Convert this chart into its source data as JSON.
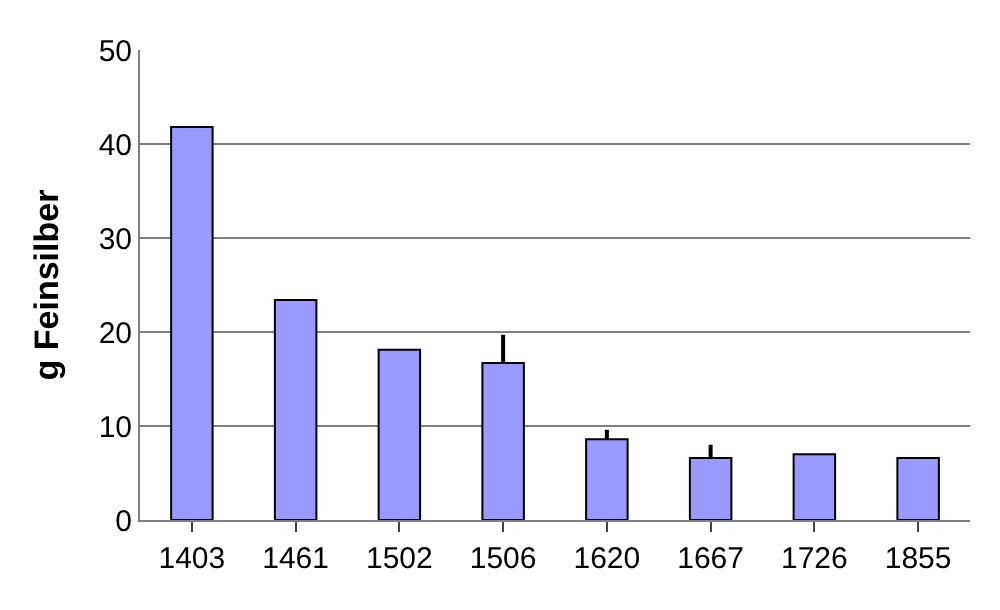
{
  "chart_data": {
    "type": "bar",
    "ylabel": "g Feinsilber",
    "categories": [
      "1403",
      "1461",
      "1502",
      "1506",
      "1620",
      "1667",
      "1726",
      "1855"
    ],
    "values": [
      41.8,
      23.4,
      18.1,
      16.7,
      8.6,
      6.6,
      7.0,
      6.6
    ],
    "errors": [
      null,
      null,
      null,
      [
        16.7,
        19.7
      ],
      [
        8.6,
        9.6
      ],
      [
        6.6,
        8.0
      ],
      null,
      null
    ],
    "color": "#9999ff",
    "ylim": [
      0,
      50
    ],
    "yticks": [
      0,
      10,
      20,
      30,
      40,
      50
    ],
    "grid": "y",
    "legend": false
  }
}
